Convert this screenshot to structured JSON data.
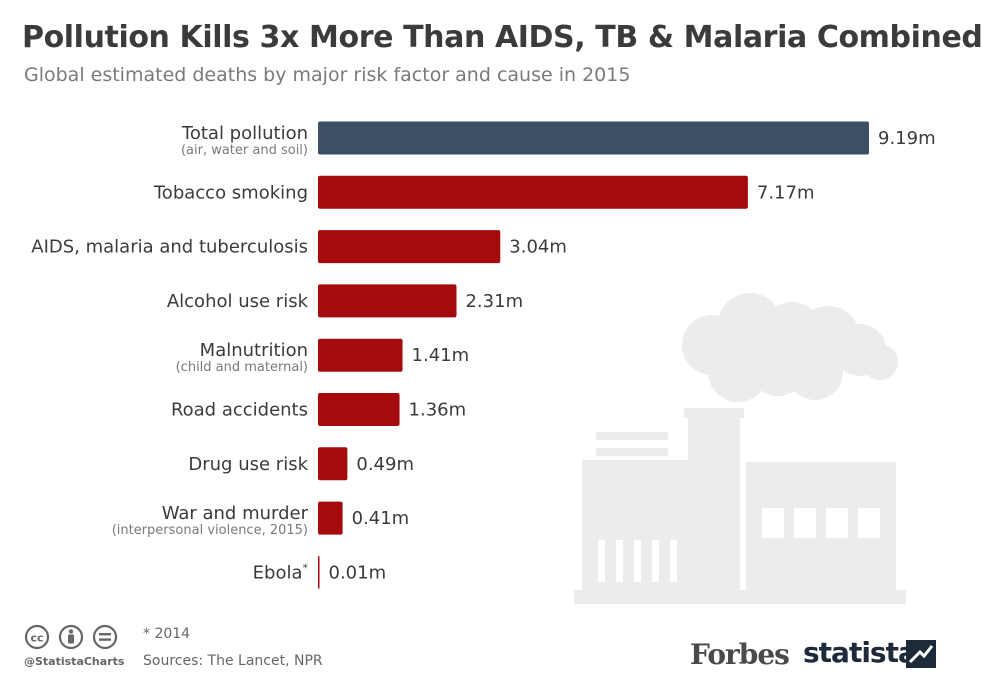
{
  "header": {
    "title": "Pollution Kills 3x More Than AIDS, TB & Malaria Combined",
    "subtitle": "Global estimated deaths by major risk factor and cause in 2015"
  },
  "chart_data": {
    "type": "bar",
    "orientation": "horizontal",
    "title": "Pollution Kills 3x More Than AIDS, TB & Malaria Combined",
    "subtitle": "Global estimated deaths by major risk factor and cause in 2015",
    "unit": "m",
    "categories": [
      {
        "label": "Total pollution",
        "sublabel": "(air, water and soil)"
      },
      {
        "label": "Tobacco smoking",
        "sublabel": ""
      },
      {
        "label": "AIDS, malaria and tuberculosis",
        "sublabel": ""
      },
      {
        "label": "Alcohol use risk",
        "sublabel": ""
      },
      {
        "label": "Malnutrition",
        "sublabel": "(child and maternal)"
      },
      {
        "label": "Road accidents",
        "sublabel": ""
      },
      {
        "label": "Drug use risk",
        "sublabel": ""
      },
      {
        "label": "War and murder",
        "sublabel": "(interpersonal violence, 2015)"
      },
      {
        "label": "Ebola",
        "sublabel": "",
        "marker": "*"
      }
    ],
    "values": [
      9.19,
      7.17,
      3.04,
      2.31,
      1.41,
      1.36,
      0.49,
      0.41,
      0.01
    ],
    "value_labels": [
      "9.19m",
      "7.17m",
      "3.04m",
      "2.31m",
      "1.41m",
      "1.36m",
      "0.49m",
      "0.41m",
      "0.01m"
    ],
    "highlight_color": "#3d5063",
    "bar_color": "#a50a0c",
    "xlim": [
      0,
      9.19
    ],
    "grid": false,
    "legend": "none"
  },
  "footer": {
    "footnote": "* 2014",
    "sources": "Sources: The Lancet, NPR",
    "handle": "@StatistaCharts",
    "license_icons": [
      "cc-icon",
      "attribution-icon",
      "no-derivatives-icon"
    ],
    "brand_forbes": "Forbes",
    "brand_statista": "statista"
  },
  "illustration": {
    "icon": "factory-smoke-icon",
    "color": "#ececec"
  }
}
